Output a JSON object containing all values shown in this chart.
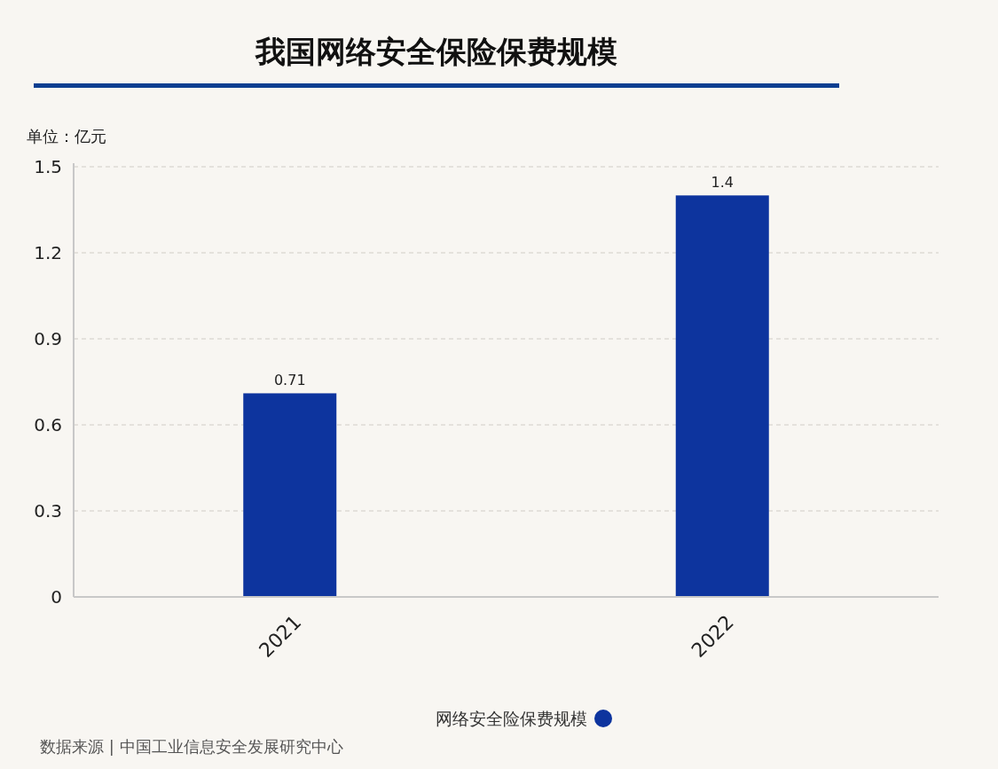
{
  "chart_data": {
    "type": "bar",
    "title": "我国网络安全保险保费规模",
    "ylabel": "单位：亿元",
    "categories": [
      "2021",
      "2022"
    ],
    "series": [
      {
        "name": "网络安全险保费规模",
        "color": "#0d349e",
        "values": [
          0.71,
          1.4
        ]
      }
    ],
    "ylim": [
      0,
      1.5
    ],
    "yticks": [
      0,
      0.3,
      0.6,
      0.9,
      1.2,
      1.5
    ],
    "grid": "y",
    "data_labels": true,
    "legend": "bottom",
    "annotations": [
      "数据来源 | 中国工业信息安全发展研究中心"
    ]
  }
}
